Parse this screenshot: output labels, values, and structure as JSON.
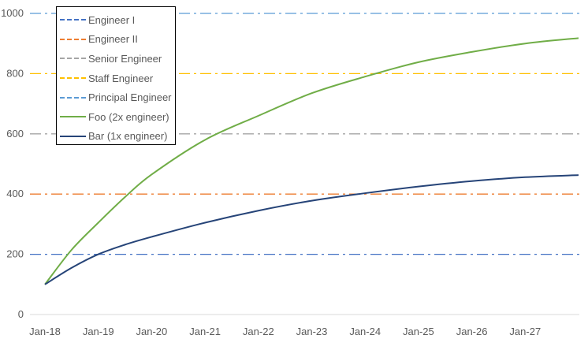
{
  "chart_data": {
    "type": "line",
    "title": "",
    "xlabel": "",
    "ylabel": "",
    "ylim": [
      0,
      1000
    ],
    "yticks": [
      "0",
      "200",
      "400",
      "600",
      "800",
      "1000"
    ],
    "xticks": [
      "Jan-18",
      "Jan-19",
      "Jan-20",
      "Jan-21",
      "Jan-22",
      "Jan-23",
      "Jan-24",
      "Jan-25",
      "Jan-26",
      "Jan-27"
    ],
    "x_years_from_jan18": [
      0,
      0.5,
      1,
      1.5,
      2,
      3,
      4,
      5,
      6,
      7,
      8,
      9,
      10
    ],
    "legend_position": "top-left",
    "series": [
      {
        "name": "Engineer I",
        "type": "reference",
        "value": 200,
        "color": "#4472C4",
        "dash": "dashdot"
      },
      {
        "name": "Engineer II",
        "type": "reference",
        "value": 400,
        "color": "#ED7D31",
        "dash": "dashdot"
      },
      {
        "name": "Senior Engineer",
        "type": "reference",
        "value": 600,
        "color": "#A5A5A5",
        "dash": "dashdot"
      },
      {
        "name": "Staff Engineer",
        "type": "reference",
        "value": 800,
        "color": "#FFC000",
        "dash": "dashdot"
      },
      {
        "name": "Principal Engineer",
        "type": "reference",
        "value": 1000,
        "color": "#5B9BD5",
        "dash": "dashdot"
      },
      {
        "name": "Foo (2x engineer)",
        "type": "line",
        "color": "#70AD47",
        "values": [
          100,
          215,
          305,
          390,
          465,
          580,
          660,
          735,
          790,
          838,
          872,
          900,
          918
        ]
      },
      {
        "name": "Bar (1x engineer)",
        "type": "line",
        "color": "#264478",
        "values": [
          100,
          155,
          200,
          232,
          258,
          305,
          345,
          378,
          403,
          425,
          443,
          456,
          463
        ]
      }
    ]
  }
}
